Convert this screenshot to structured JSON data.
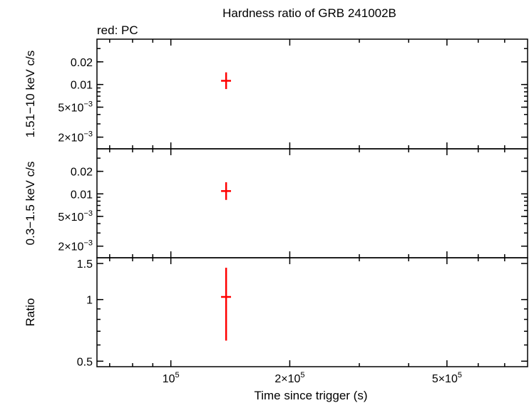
{
  "chart_data": {
    "type": "scatter",
    "title": "Hardness ratio of GRB 241002B",
    "subtitle": "red: PC",
    "xlabel": "Time since trigger (s)",
    "xscale": "log",
    "xlim": [
      65000,
      800000
    ],
    "x_ticks": [
      {
        "value": 100000,
        "mantissa": "",
        "exp": "5"
      },
      {
        "value": 200000,
        "mantissa": "2",
        "exp": "5"
      },
      {
        "value": 500000,
        "mantissa": "5",
        "exp": "5"
      }
    ],
    "series_color": "#ff0000",
    "panels": [
      {
        "ylabel": "1.51−10 keV c/s",
        "yscale": "log",
        "ylim": [
          0.0014,
          0.04
        ],
        "y_ticks": [
          {
            "value": 0.02,
            "text": "0.02"
          },
          {
            "value": 0.01,
            "text": "0.01"
          },
          {
            "value": 0.005,
            "mantissa": "5",
            "exp": "−3"
          },
          {
            "value": 0.002,
            "mantissa": "2",
            "exp": "−3"
          }
        ],
        "points": [
          {
            "x": 138000,
            "x_lo": 134000,
            "x_hi": 142000,
            "y": 0.0112,
            "y_lo": 0.0087,
            "y_hi": 0.0145
          }
        ]
      },
      {
        "ylabel": "0.3−1.5 keV c/s",
        "yscale": "log",
        "ylim": [
          0.0014,
          0.04
        ],
        "y_ticks": [
          {
            "value": 0.02,
            "text": "0.02"
          },
          {
            "value": 0.01,
            "text": "0.01"
          },
          {
            "value": 0.005,
            "mantissa": "5",
            "exp": "−3"
          },
          {
            "value": 0.002,
            "mantissa": "2",
            "exp": "−3"
          }
        ],
        "points": [
          {
            "x": 138000,
            "x_lo": 134000,
            "x_hi": 142000,
            "y": 0.0109,
            "y_lo": 0.0083,
            "y_hi": 0.0143
          }
        ]
      },
      {
        "ylabel": "Ratio",
        "yscale": "log",
        "ylim": [
          0.47,
          1.6
        ],
        "y_ticks": [
          {
            "value": 1.5,
            "text": "1.5"
          },
          {
            "value": 1,
            "text": "1"
          },
          {
            "value": 0.5,
            "text": "0.5"
          }
        ],
        "points": [
          {
            "x": 138000,
            "x_lo": 134000,
            "x_hi": 142000,
            "y": 1.03,
            "y_lo": 0.63,
            "y_hi": 1.43
          }
        ]
      }
    ]
  }
}
